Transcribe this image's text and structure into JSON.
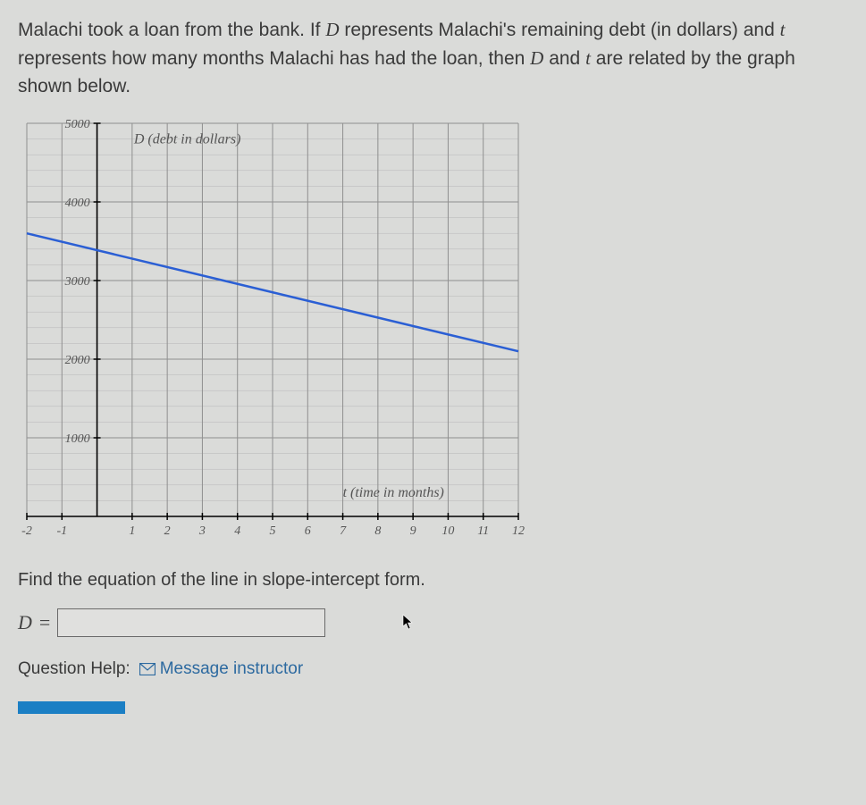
{
  "problem": {
    "line1": "Malachi took a loan from the bank. If",
    "var1": "D",
    "line2": "represents Malachi's remaining debt (in dollars) and",
    "var2": "t",
    "line3": "represents how many months Malachi has had the loan, then",
    "var3": "D",
    "line4": "and",
    "var4": "t",
    "line5": "are related by the graph shown below."
  },
  "chart": {
    "type": "line",
    "x_min": -2,
    "x_max": 12,
    "y_min": 0,
    "y_max": 5000,
    "x_major_step": 1,
    "y_major_step": 1000,
    "y_minor_per_major": 5,
    "y_label": "D (debt in dollars)",
    "x_label": "t (time in months)",
    "x_ticks": [
      -2,
      -1,
      1,
      2,
      3,
      4,
      5,
      6,
      7,
      8,
      9,
      10,
      11,
      12
    ],
    "y_ticks": [
      1000,
      2000,
      3000,
      4000,
      5000
    ],
    "grid_color": "#8f8f8f",
    "minor_grid_color": "#b7b7b7",
    "axis_color": "#000000",
    "line_color": "#2b5fd4",
    "line_points": [
      [
        -2,
        3600
      ],
      [
        12,
        2100
      ]
    ],
    "label_color": "#555555",
    "tick_font_size": 14,
    "axis_label_font_style": "italic",
    "background_color": "#dadbd9"
  },
  "instruction": "Find the equation of the line in slope-intercept form.",
  "answer": {
    "prefix_var": "D",
    "equals": "=",
    "value": ""
  },
  "help": {
    "label": "Question Help:",
    "link": "Message instructor"
  }
}
